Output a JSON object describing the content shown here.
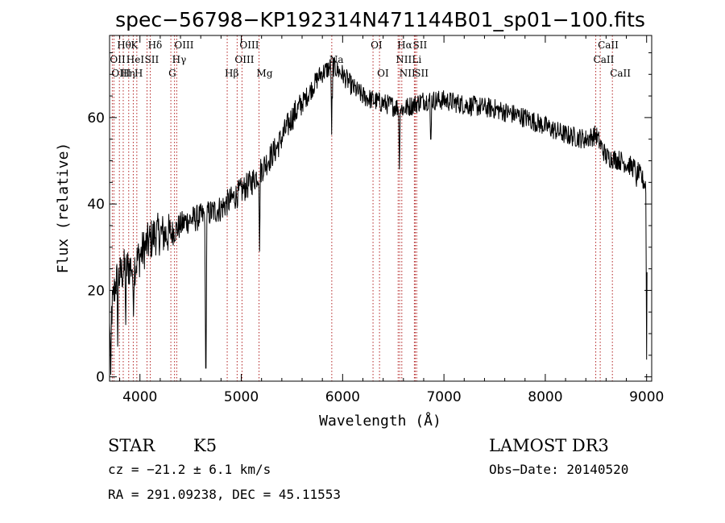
{
  "chart_data": {
    "type": "line",
    "title": "spec−56798−KP192314N471144B01_sp01−100.fits",
    "xlabel": "Wavelength (Å)",
    "ylabel": "Flux (relative)",
    "xlim": [
      3700,
      9050
    ],
    "ylim": [
      -1,
      79
    ],
    "xticks": [
      4000,
      5000,
      6000,
      7000,
      8000,
      9000
    ],
    "yticks": [
      0,
      20,
      40,
      60
    ],
    "grid": false,
    "legend": "none",
    "line_color": "#000000",
    "marker_color": "#b22222",
    "spectral_lines": [
      {
        "label": "Hθ",
        "x": 3797,
        "row": 0
      },
      {
        "label": "OII",
        "x": 3727,
        "row": 1
      },
      {
        "label": "OIII",
        "x": 3743,
        "row": 2
      },
      {
        "label": "K",
        "x": 3934,
        "row": 0
      },
      {
        "label": "HeI",
        "x": 3889,
        "row": 1
      },
      {
        "label": "Hη",
        "x": 3835,
        "row": 2
      },
      {
        "label": "H",
        "x": 3969,
        "row": 2
      },
      {
        "label": "Hδ",
        "x": 4102,
        "row": 0
      },
      {
        "label": "SII",
        "x": 4070,
        "row": 1
      },
      {
        "label": "OIII",
        "x": 4363,
        "row": 0
      },
      {
        "label": "Hγ",
        "x": 4341,
        "row": 1
      },
      {
        "label": "G",
        "x": 4305,
        "row": 2
      },
      {
        "label": "OIII",
        "x": 5007,
        "row": 0
      },
      {
        "label": "OIII",
        "x": 4959,
        "row": 1
      },
      {
        "label": "Hβ",
        "x": 4861,
        "row": 2
      },
      {
        "label": "Mg",
        "x": 5175,
        "row": 2
      },
      {
        "label": "Na",
        "x": 5893,
        "row": 1
      },
      {
        "label": "OI",
        "x": 6300,
        "row": 0
      },
      {
        "label": "OI",
        "x": 6364,
        "row": 2
      },
      {
        "label": "Hα",
        "x": 6563,
        "row": 0
      },
      {
        "label": "NII",
        "x": 6548,
        "row": 1
      },
      {
        "label": "NII",
        "x": 6584,
        "row": 2
      },
      {
        "label": "SII",
        "x": 6717,
        "row": 0
      },
      {
        "label": "Li",
        "x": 6708,
        "row": 1
      },
      {
        "label": "SII",
        "x": 6731,
        "row": 2
      },
      {
        "label": "CaII",
        "x": 8542,
        "row": 0
      },
      {
        "label": "CaII",
        "x": 8498,
        "row": 1
      },
      {
        "label": "CaII",
        "x": 8662,
        "row": 2
      }
    ],
    "continuum": [
      [
        3700,
        11
      ],
      [
        3760,
        22
      ],
      [
        3850,
        25
      ],
      [
        3950,
        26
      ],
      [
        4050,
        30
      ],
      [
        4150,
        33
      ],
      [
        4300,
        33
      ],
      [
        4450,
        36
      ],
      [
        4600,
        37
      ],
      [
        4800,
        39
      ],
      [
        4950,
        42
      ],
      [
        5100,
        45
      ],
      [
        5200,
        48
      ],
      [
        5350,
        53
      ],
      [
        5500,
        60
      ],
      [
        5650,
        65
      ],
      [
        5780,
        70
      ],
      [
        5900,
        72
      ],
      [
        6000,
        70
      ],
      [
        6100,
        67
      ],
      [
        6200,
        65
      ],
      [
        6300,
        64
      ],
      [
        6450,
        63
      ],
      [
        6600,
        62
      ],
      [
        6800,
        64
      ],
      [
        6900,
        64
      ],
      [
        7000,
        64
      ],
      [
        7200,
        63
      ],
      [
        7500,
        62
      ],
      [
        7800,
        60
      ],
      [
        8000,
        58
      ],
      [
        8200,
        56
      ],
      [
        8400,
        55
      ],
      [
        8500,
        56
      ],
      [
        8600,
        51
      ],
      [
        8750,
        50
      ],
      [
        8900,
        48
      ],
      [
        9000,
        44
      ]
    ],
    "absorption_features": [
      {
        "x": 3712,
        "flux": 0.5
      },
      {
        "x": 3780,
        "flux": 7
      },
      {
        "x": 3860,
        "flux": 12
      },
      {
        "x": 3935,
        "flux": 14
      },
      {
        "x": 4650,
        "flux": 2
      },
      {
        "x": 5180,
        "flux": 29
      },
      {
        "x": 5893,
        "flux": 56
      },
      {
        "x": 6560,
        "flux": 48
      },
      {
        "x": 6870,
        "flux": 55
      },
      {
        "x": 8900,
        "flux": 44
      },
      {
        "x": 9000,
        "flux": 4
      }
    ]
  },
  "info": {
    "class_label": "STAR",
    "subclass": "K5",
    "survey": "LAMOST DR3",
    "redshift": "cz = −21.2 ± 6.1 km/s",
    "obs_date": "Obs−Date: 20140520",
    "coords": "RA = 291.09238, DEC =  45.11553"
  }
}
